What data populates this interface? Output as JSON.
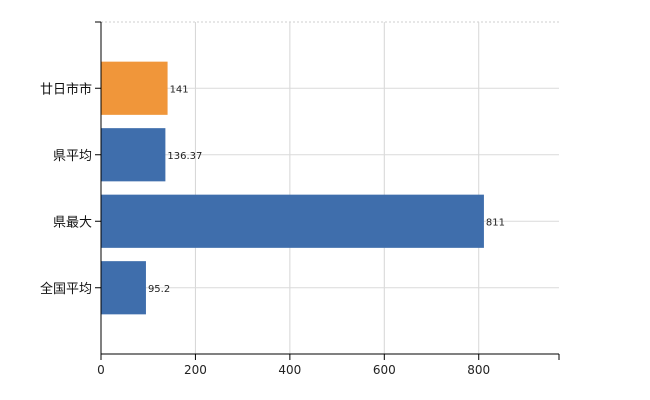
{
  "chart_data": {
    "type": "bar",
    "orientation": "horizontal",
    "title": "",
    "xlabel": "",
    "ylabel": "",
    "categories": [
      "廿日市市",
      "県平均",
      "県最大",
      "全国平均"
    ],
    "values": [
      141,
      136.37,
      811,
      95.2
    ],
    "value_labels": [
      "141",
      "136.37",
      "811",
      "95.2"
    ],
    "bar_colors": [
      "#f0963a",
      "#3f6eac",
      "#3f6eac",
      "#3f6eac"
    ],
    "xlim": [
      0,
      970
    ],
    "xticks": [
      0,
      200,
      400,
      600,
      800
    ],
    "grid": true,
    "legend": "none"
  }
}
